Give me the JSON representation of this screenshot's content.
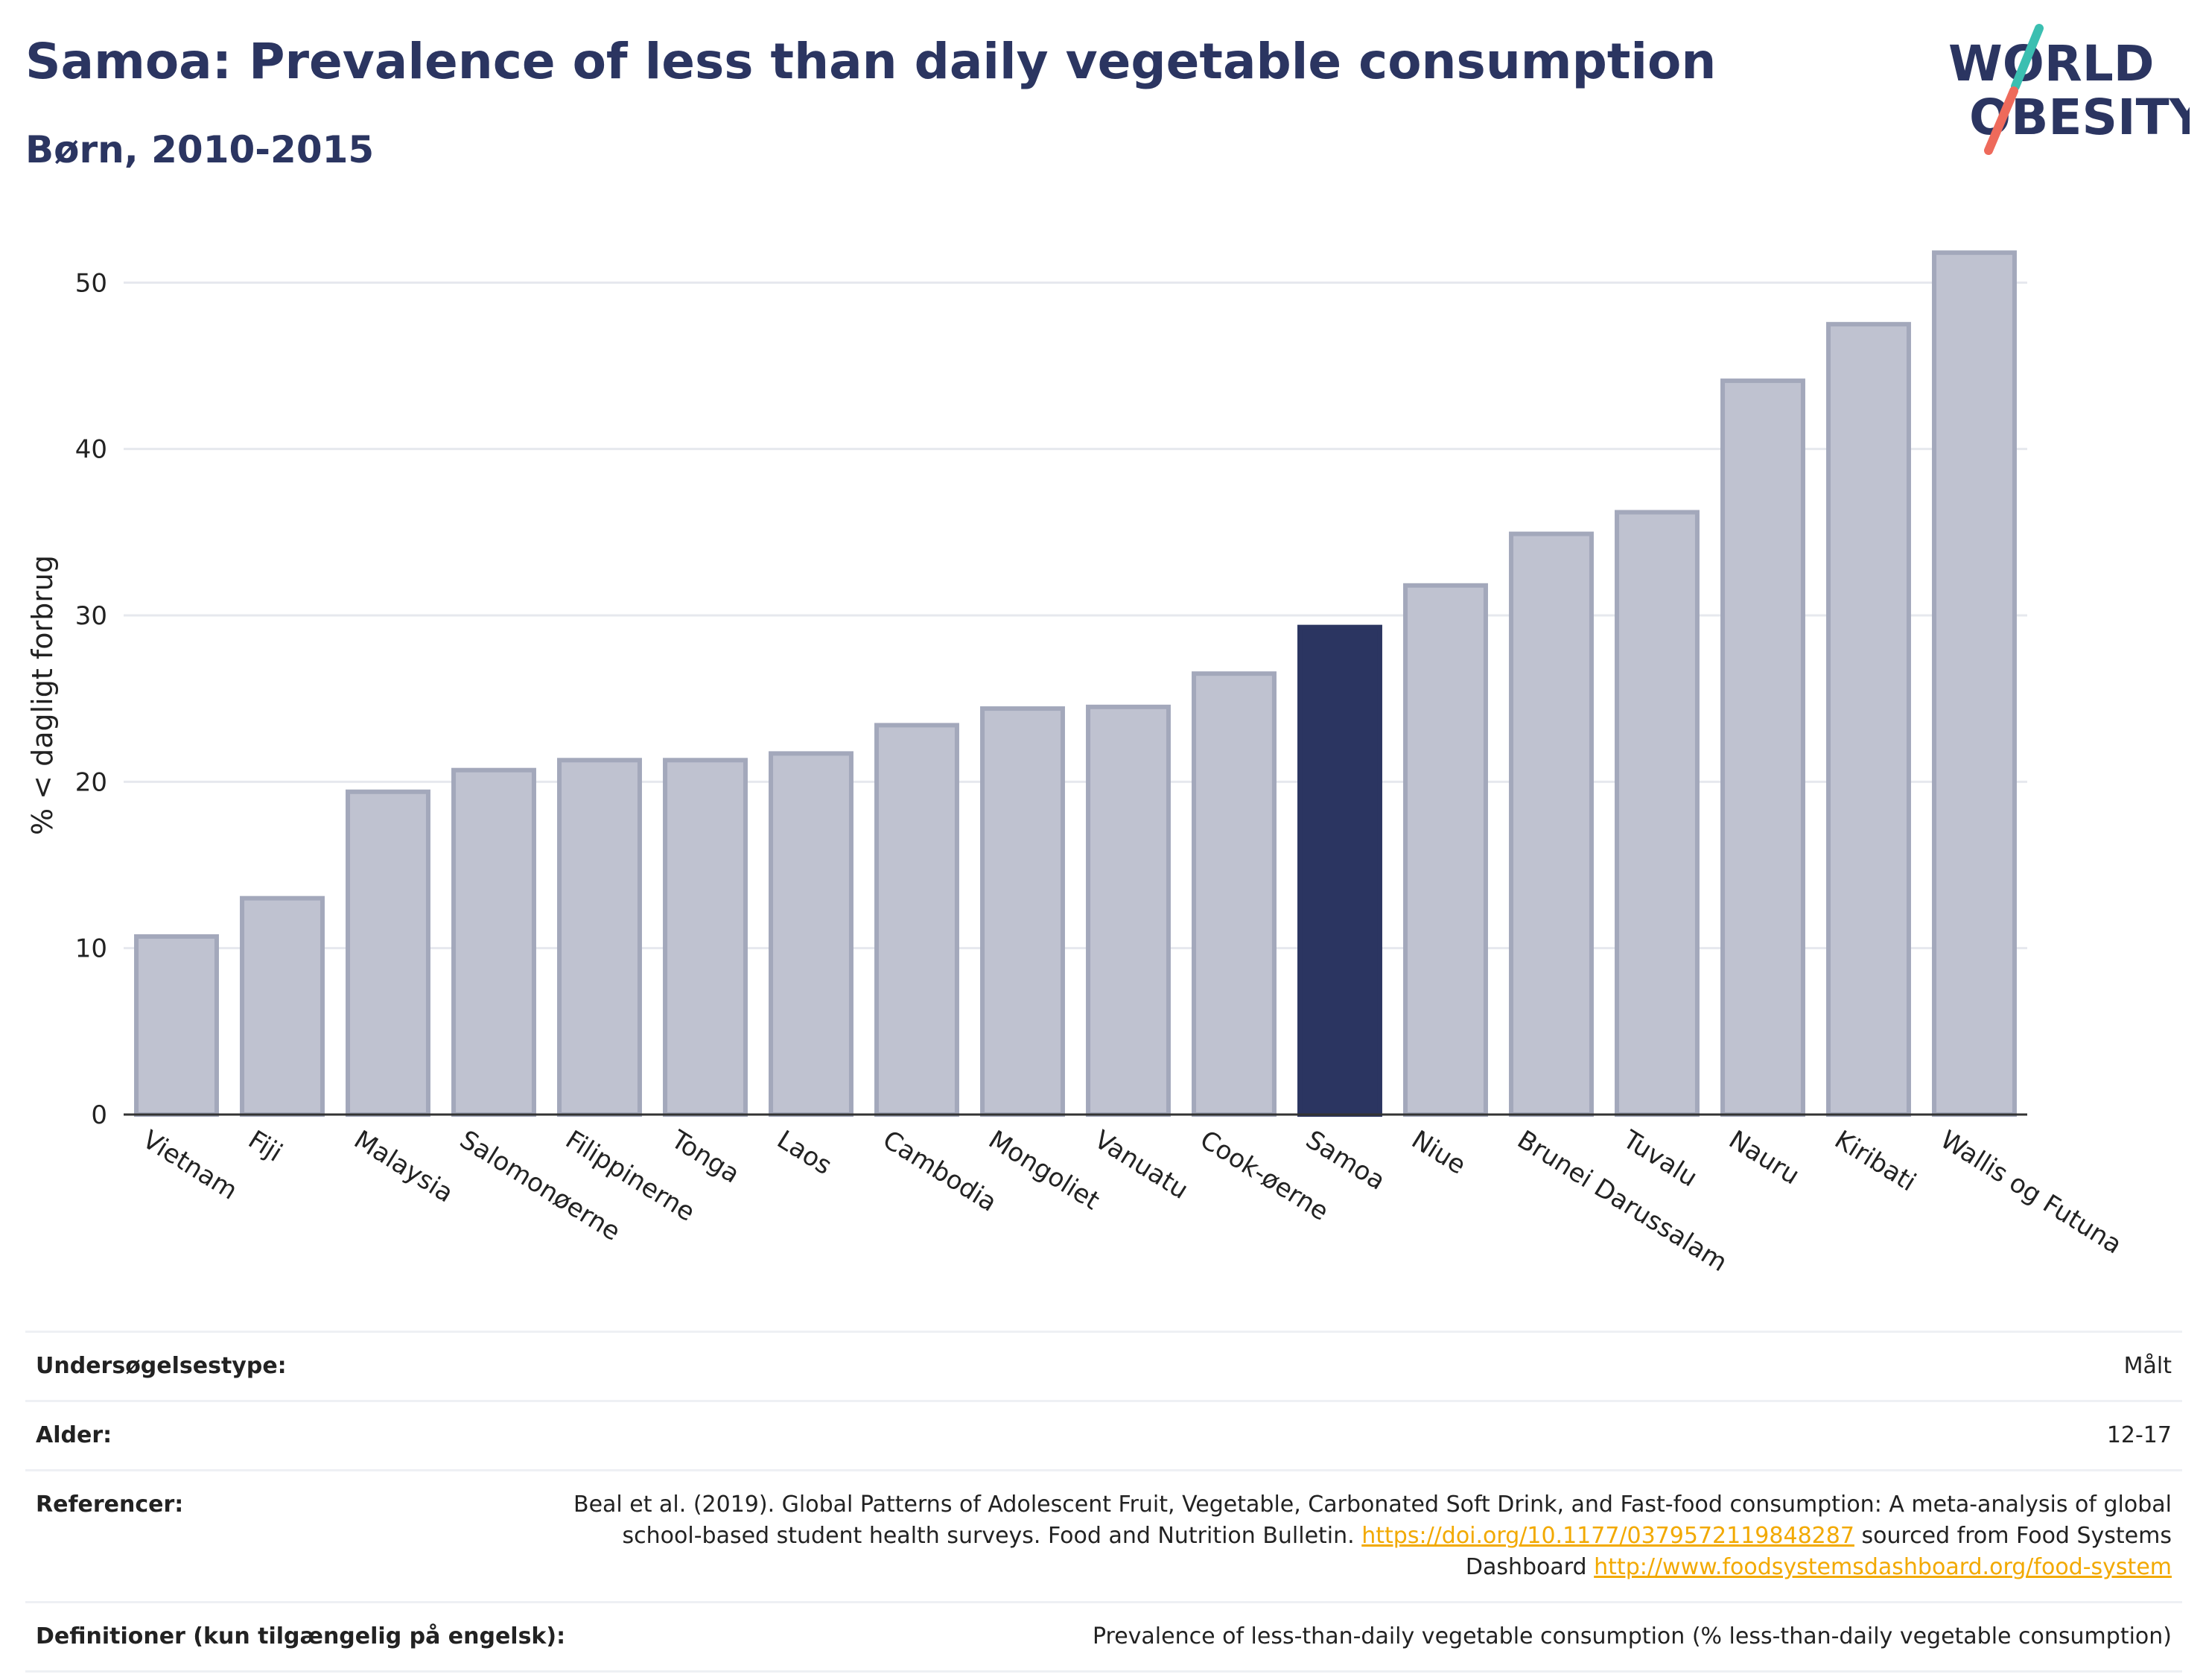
{
  "header": {
    "title": "Samoa: Prevalence of less than daily vegetable consumption",
    "subtitle": "Børn, 2010-2015"
  },
  "logo": {
    "line1": "WORLD",
    "line2": "OBESITY",
    "color_dark": "#2b3561",
    "color_teal": "#3bbfb1",
    "color_coral": "#ee6a5b"
  },
  "chart_data": {
    "type": "bar",
    "ylabel": "% < dagligt forbrug",
    "ylim": [
      0,
      54
    ],
    "yticks": [
      0,
      10,
      20,
      30,
      40,
      50
    ],
    "grid": true,
    "categories": [
      "Vietnam",
      "Fiji",
      "Malaysia",
      "Salomonøerne",
      "Filippinerne",
      "Tonga",
      "Laos",
      "Cambodia",
      "Mongoliet",
      "Vanuatu",
      "Cook-øerne",
      "Samoa",
      "Niue",
      "Brunei Darussalam",
      "Tuvalu",
      "Nauru",
      "Kiribati",
      "Wallis og Futuna"
    ],
    "values": [
      10.7,
      13.0,
      19.4,
      20.7,
      21.3,
      21.3,
      21.7,
      23.4,
      24.4,
      24.5,
      26.5,
      29.3,
      31.8,
      34.9,
      36.2,
      44.1,
      47.5,
      51.8
    ],
    "highlight": "Samoa",
    "colors": {
      "bar": "#bfc2d0",
      "bar_border": "#a3a8bb",
      "highlight": "#2b3561",
      "grid": "#e6e8ee",
      "axis": "#333333"
    }
  },
  "footer": {
    "survey_label": "Undersøgelsestype:",
    "survey_value": "Målt",
    "age_label": "Alder:",
    "age_value": "12-17",
    "ref_label": "Referencer:",
    "ref_text1": "Beal et al. (2019). Global Patterns of Adolescent Fruit, Vegetable, Carbonated Soft Drink, and Fast-food consumption: A meta-analysis of global school-based student health surveys. Food and Nutrition Bulletin.",
    "ref_link1": "https://doi.org/10.1177/0379572119848287",
    "ref_text2": "sourced from Food Systems Dashboard",
    "ref_link2": "http://www.foodsystemsdashboard.org/food-system",
    "def_label": "Definitioner (kun tilgængelig på engelsk):",
    "def_value": "Prevalence of less-than-daily vegetable consumption (% less-than-daily vegetable consumption)"
  }
}
